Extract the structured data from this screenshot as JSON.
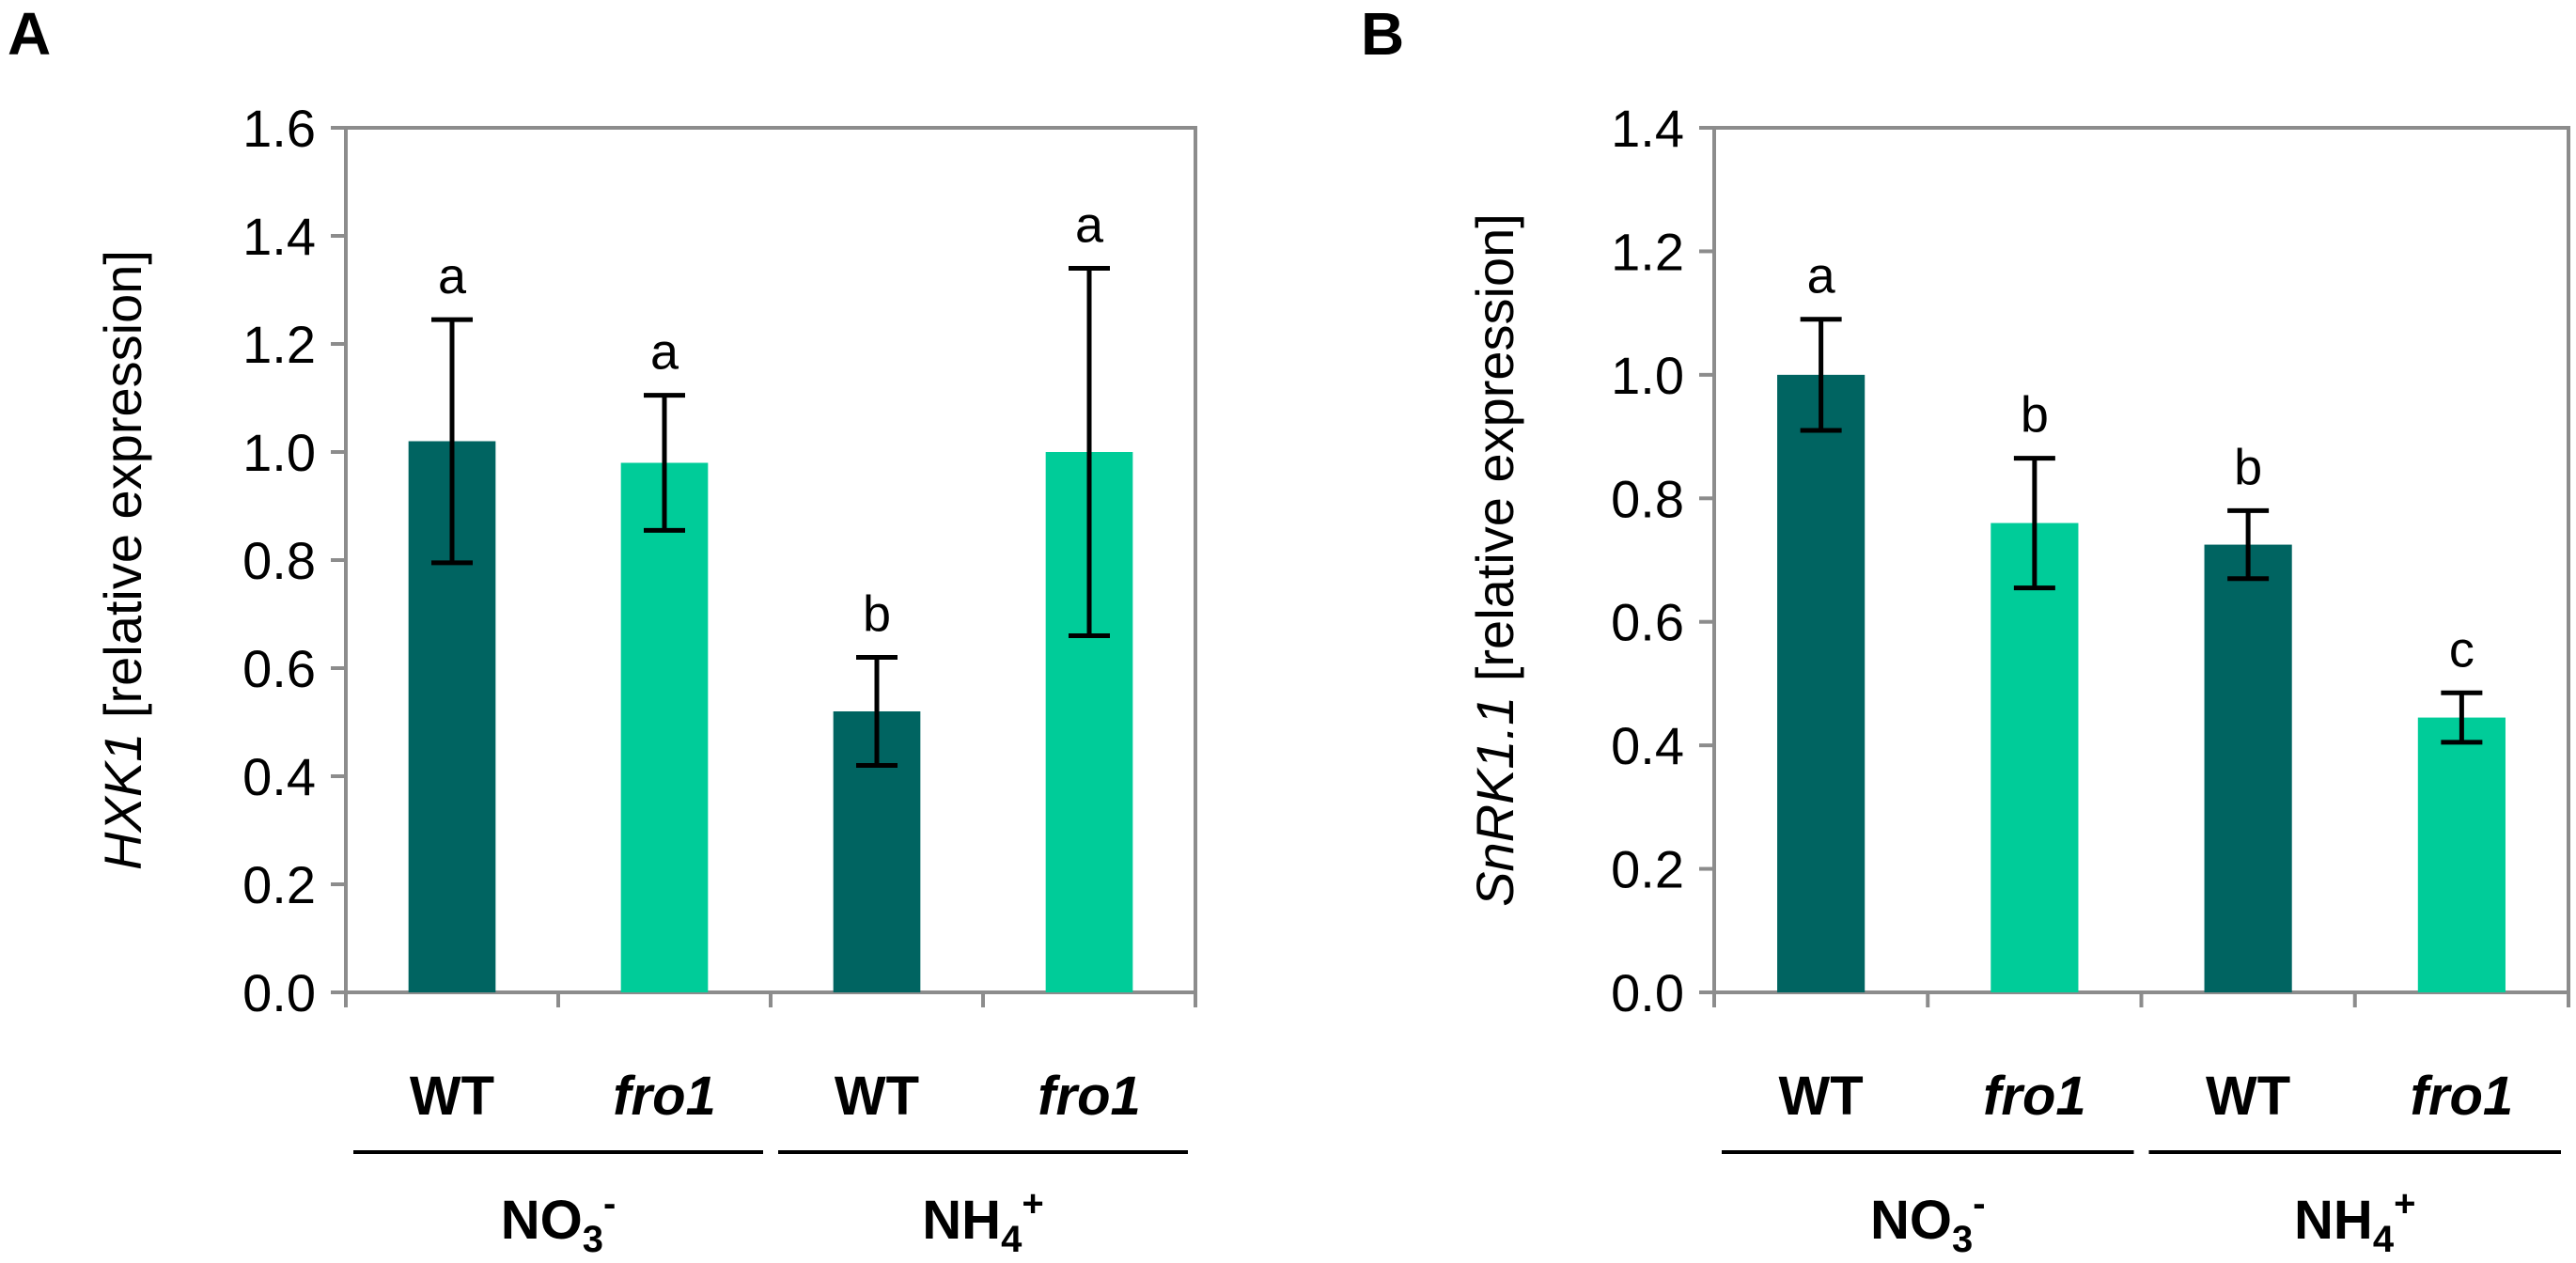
{
  "chart_data": [
    {
      "type": "bar",
      "panel_label": "A",
      "ylabel_gene": "HXK1",
      "ylabel_rest": " [relative expression]",
      "ylim": [
        0,
        1.6
      ],
      "yticks": [
        "0.0",
        "0.2",
        "0.4",
        "0.6",
        "0.8",
        "1.0",
        "1.2",
        "1.4",
        "1.6"
      ],
      "categories": [
        "WT",
        "fro1",
        "WT",
        "fro1"
      ],
      "category_italic": [
        false,
        true,
        false,
        true
      ],
      "groups": [
        {
          "main": "NO",
          "sub": "3",
          "sup": "-"
        },
        {
          "main": "NH",
          "sub": "4",
          "sup": "+"
        }
      ],
      "values": [
        1.02,
        0.98,
        0.52,
        1.0
      ],
      "errors": [
        0.225,
        0.125,
        0.1,
        0.34
      ],
      "significance": [
        "a",
        "a",
        "b",
        "a"
      ],
      "bar_colors": [
        "#006461",
        "#00CC99",
        "#006461",
        "#00CC99"
      ]
    },
    {
      "type": "bar",
      "panel_label": "B",
      "ylabel_gene": "SnRK1.1",
      "ylabel_rest": " [relative expression]",
      "ylim": [
        0,
        1.4
      ],
      "yticks": [
        "0.0",
        "0.2",
        "0.4",
        "0.6",
        "0.8",
        "1.0",
        "1.2",
        "1.4"
      ],
      "categories": [
        "WT",
        "fro1",
        "WT",
        "fro1"
      ],
      "category_italic": [
        false,
        true,
        false,
        true
      ],
      "groups": [
        {
          "main": "NO",
          "sub": "3",
          "sup": "-"
        },
        {
          "main": "NH",
          "sub": "4",
          "sup": "+"
        }
      ],
      "values": [
        1.0,
        0.76,
        0.725,
        0.445
      ],
      "errors": [
        0.09,
        0.105,
        0.055,
        0.04
      ],
      "significance": [
        "a",
        "b",
        "b",
        "c"
      ],
      "bar_colors": [
        "#006461",
        "#00CC99",
        "#006461",
        "#00CC99"
      ]
    }
  ]
}
